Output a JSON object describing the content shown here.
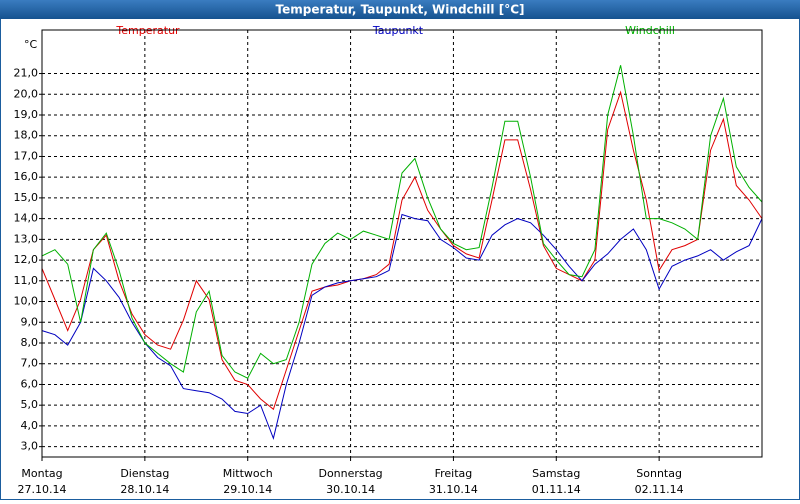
{
  "chart_data": {
    "type": "line",
    "title": "Temperatur, Taupunkt, Windchill [°C]",
    "y_unit": "°C",
    "x": [
      0,
      3,
      6,
      9,
      12,
      15,
      18,
      21,
      24,
      27,
      30,
      33,
      36,
      39,
      42,
      45,
      48,
      51,
      54,
      57,
      60,
      63,
      66,
      69,
      72,
      75,
      78,
      81,
      84,
      87,
      90,
      93,
      96,
      99,
      102,
      105,
      108,
      111,
      114,
      117,
      120,
      123,
      126,
      129,
      132,
      135,
      138,
      141,
      144,
      147,
      150,
      153,
      156,
      159,
      162,
      165,
      168
    ],
    "xlim": [
      0,
      168
    ],
    "xticks": [
      {
        "value": 0,
        "label": "Montag"
      },
      {
        "value": 24,
        "label": "Dienstag"
      },
      {
        "value": 48,
        "label": "Mittwoch"
      },
      {
        "value": 72,
        "label": "Donnerstag"
      },
      {
        "value": 96,
        "label": "Freitag"
      },
      {
        "value": 120,
        "label": "Samstag"
      },
      {
        "value": 144,
        "label": "Sonntag"
      }
    ],
    "xtick_dates": [
      "27.10.14",
      "28.10.14",
      "29.10.14",
      "30.10.14",
      "31.10.14",
      "01.11.14",
      "02.11.14"
    ],
    "ylim": [
      2.5,
      23.1
    ],
    "yticks": [
      {
        "value": 3,
        "label": "3,0"
      },
      {
        "value": 4,
        "label": "4,0"
      },
      {
        "value": 5,
        "label": "5,0"
      },
      {
        "value": 6,
        "label": "6,0"
      },
      {
        "value": 7,
        "label": "7,0"
      },
      {
        "value": 8,
        "label": "8,0"
      },
      {
        "value": 9,
        "label": "9,0"
      },
      {
        "value": 10,
        "label": "10,0"
      },
      {
        "value": 11,
        "label": "11,0"
      },
      {
        "value": 12,
        "label": "12,0"
      },
      {
        "value": 13,
        "label": "13,0"
      },
      {
        "value": 14,
        "label": "14,0"
      },
      {
        "value": 15,
        "label": "15,0"
      },
      {
        "value": 16,
        "label": "16,0"
      },
      {
        "value": 17,
        "label": "17,0"
      },
      {
        "value": 18,
        "label": "18,0"
      },
      {
        "value": 19,
        "label": "19,0"
      },
      {
        "value": 20,
        "label": "20,0"
      },
      {
        "value": 21,
        "label": "21,0"
      }
    ],
    "grid": true,
    "series": [
      {
        "name": "Temperatur",
        "color": "#e00000",
        "values": [
          11.6,
          10.1,
          8.6,
          10.1,
          12.5,
          13.2,
          11.0,
          9.4,
          8.4,
          7.9,
          7.7,
          9.1,
          11.0,
          10.1,
          7.2,
          6.2,
          6.0,
          5.3,
          4.8,
          6.7,
          8.6,
          10.5,
          10.7,
          10.8,
          11.0,
          11.1,
          11.3,
          11.8,
          14.9,
          16.0,
          14.4,
          13.5,
          12.7,
          12.3,
          12.1,
          14.9,
          17.8,
          17.8,
          15.4,
          12.7,
          11.6,
          11.3,
          11.0,
          12.0,
          18.3,
          20.1,
          17.3,
          14.9,
          11.5,
          12.5,
          12.7,
          13.0,
          17.3,
          18.8,
          15.6,
          14.9,
          14.0
        ]
      },
      {
        "name": "Taupunkt",
        "color": "#0000c0",
        "values": [
          8.6,
          8.4,
          7.9,
          9.0,
          11.6,
          11.0,
          10.2,
          9.0,
          8.0,
          7.3,
          6.9,
          5.8,
          5.7,
          5.6,
          5.3,
          4.7,
          4.6,
          5.0,
          3.4,
          6.0,
          8.0,
          10.3,
          10.7,
          10.9,
          11.0,
          11.1,
          11.2,
          11.5,
          14.2,
          14.0,
          13.9,
          13.0,
          12.6,
          12.1,
          12.0,
          13.2,
          13.7,
          14.0,
          13.8,
          13.2,
          12.5,
          11.7,
          11.0,
          11.8,
          12.3,
          13.0,
          13.5,
          12.5,
          10.6,
          11.7,
          12.0,
          12.2,
          12.5,
          12.0,
          12.4,
          12.7,
          14.0
        ]
      },
      {
        "name": "Windchill",
        "color": "#00b000",
        "values": [
          12.2,
          12.5,
          11.8,
          9.0,
          12.5,
          13.3,
          11.5,
          9.2,
          8.0,
          7.5,
          7.0,
          6.6,
          9.5,
          10.5,
          7.4,
          6.6,
          6.3,
          7.5,
          7.0,
          7.2,
          9.0,
          11.8,
          12.8,
          13.3,
          13.0,
          13.4,
          13.2,
          13.0,
          16.2,
          16.9,
          15.0,
          13.5,
          12.8,
          12.5,
          12.6,
          15.5,
          18.7,
          18.7,
          16.0,
          12.8,
          12.0,
          11.3,
          11.2,
          12.5,
          19.0,
          21.4,
          18.0,
          14.0,
          14.0,
          13.8,
          13.5,
          13.0,
          18.0,
          19.8,
          16.5,
          15.5,
          14.8
        ]
      }
    ]
  }
}
